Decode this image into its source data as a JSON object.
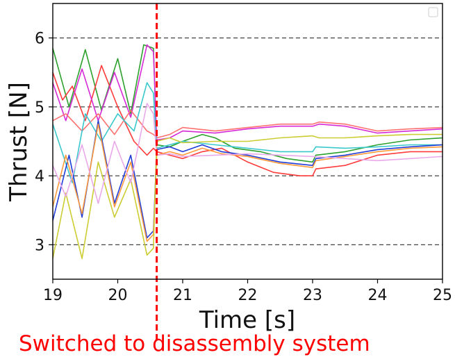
{
  "chart_data": {
    "type": "line",
    "xlabel": "Time [s]",
    "ylabel": "Thrust [N]",
    "xlim": [
      19,
      25
    ],
    "ylim": [
      2.5,
      6.5
    ],
    "x_ticks": [
      19,
      20,
      21,
      22,
      23,
      24,
      25
    ],
    "y_ticks": [
      3,
      4,
      5,
      6
    ],
    "x_tick_labels": [
      "19",
      "20",
      "21",
      "22",
      "23",
      "24",
      "25"
    ],
    "y_tick_labels": [
      "3",
      "4",
      "5",
      "6"
    ],
    "grid": {
      "horizontal_dashed": true,
      "lines_at": [
        3,
        4,
        5,
        6
      ]
    },
    "legend": {
      "placement": "top-right",
      "entries": []
    },
    "annotation": {
      "x": 20.6,
      "color": "#ff0000",
      "style": "dashed",
      "text": "Switched to disassembly system"
    },
    "series": [
      {
        "color": "#2ca02c",
        "points": [
          [
            19,
            5.85
          ],
          [
            19.25,
            5.0
          ],
          [
            19.5,
            5.83
          ],
          [
            19.75,
            4.95
          ],
          [
            20,
            5.7
          ],
          [
            20.2,
            4.9
          ],
          [
            20.4,
            5.9
          ],
          [
            20.55,
            5.85
          ],
          [
            20.6,
            4.45
          ],
          [
            20.8,
            4.42
          ],
          [
            21.0,
            4.5
          ],
          [
            21.3,
            4.6
          ],
          [
            21.5,
            4.55
          ],
          [
            21.8,
            4.4
          ],
          [
            22.2,
            4.35
          ],
          [
            22.6,
            4.25
          ],
          [
            23.0,
            4.2
          ],
          [
            23.05,
            4.3
          ],
          [
            23.5,
            4.35
          ],
          [
            24.0,
            4.45
          ],
          [
            24.5,
            4.52
          ],
          [
            25,
            4.55
          ]
        ]
      },
      {
        "color": "#ff3b3b",
        "points": [
          [
            19,
            5.5
          ],
          [
            19.15,
            5.1
          ],
          [
            19.3,
            5.3
          ],
          [
            19.5,
            4.8
          ],
          [
            19.75,
            5.6
          ],
          [
            20,
            5.0
          ],
          [
            20.25,
            4.5
          ],
          [
            20.45,
            4.3
          ],
          [
            20.55,
            4.4
          ],
          [
            20.6,
            4.35
          ],
          [
            20.8,
            4.3
          ],
          [
            21.0,
            4.25
          ],
          [
            21.3,
            4.35
          ],
          [
            21.6,
            4.4
          ],
          [
            22.0,
            4.2
          ],
          [
            22.4,
            4.05
          ],
          [
            22.8,
            4.0
          ],
          [
            23.0,
            4.0
          ],
          [
            23.05,
            4.1
          ],
          [
            23.5,
            4.15
          ],
          [
            24.0,
            4.3
          ],
          [
            24.5,
            4.35
          ],
          [
            25,
            4.35
          ]
        ]
      },
      {
        "color": "#d62ad6",
        "points": [
          [
            19,
            5.35
          ],
          [
            19.2,
            4.8
          ],
          [
            19.45,
            5.55
          ],
          [
            19.7,
            4.8
          ],
          [
            19.95,
            5.5
          ],
          [
            20.2,
            4.85
          ],
          [
            20.45,
            5.9
          ],
          [
            20.55,
            5.8
          ],
          [
            20.6,
            4.52
          ],
          [
            20.8,
            4.55
          ],
          [
            21.0,
            4.65
          ],
          [
            21.5,
            4.62
          ],
          [
            22.0,
            4.68
          ],
          [
            22.5,
            4.72
          ],
          [
            23.0,
            4.72
          ],
          [
            23.1,
            4.75
          ],
          [
            23.5,
            4.72
          ],
          [
            24.0,
            4.62
          ],
          [
            24.5,
            4.65
          ],
          [
            25,
            4.68
          ]
        ]
      },
      {
        "color": "#ff7070",
        "points": [
          [
            19,
            4.8
          ],
          [
            19.2,
            4.9
          ],
          [
            19.45,
            4.65
          ],
          [
            19.7,
            4.9
          ],
          [
            19.95,
            4.6
          ],
          [
            20.2,
            4.95
          ],
          [
            20.45,
            4.65
          ],
          [
            20.55,
            4.6
          ],
          [
            20.6,
            4.55
          ],
          [
            20.8,
            4.6
          ],
          [
            21.0,
            4.7
          ],
          [
            21.5,
            4.65
          ],
          [
            22.0,
            4.7
          ],
          [
            22.5,
            4.75
          ],
          [
            23.0,
            4.75
          ],
          [
            23.1,
            4.78
          ],
          [
            23.5,
            4.75
          ],
          [
            24.0,
            4.65
          ],
          [
            24.5,
            4.68
          ],
          [
            25,
            4.7
          ]
        ]
      },
      {
        "color": "#3ac8cc",
        "points": [
          [
            19,
            4.75
          ],
          [
            19.3,
            3.9
          ],
          [
            19.5,
            4.9
          ],
          [
            19.75,
            4.5
          ],
          [
            20.0,
            4.9
          ],
          [
            20.25,
            4.65
          ],
          [
            20.45,
            5.35
          ],
          [
            20.55,
            5.2
          ],
          [
            20.6,
            4.4
          ],
          [
            20.8,
            4.45
          ],
          [
            21.0,
            4.5
          ],
          [
            21.5,
            4.45
          ],
          [
            22.0,
            4.4
          ],
          [
            22.5,
            4.35
          ],
          [
            23.0,
            4.35
          ],
          [
            23.05,
            4.42
          ],
          [
            23.5,
            4.4
          ],
          [
            24.0,
            4.42
          ],
          [
            24.5,
            4.45
          ],
          [
            25,
            4.45
          ]
        ]
      },
      {
        "color": "#1f3cd6",
        "points": [
          [
            19,
            3.35
          ],
          [
            19.25,
            4.3
          ],
          [
            19.45,
            3.4
          ],
          [
            19.7,
            4.8
          ],
          [
            19.95,
            3.6
          ],
          [
            20.2,
            4.3
          ],
          [
            20.45,
            3.1
          ],
          [
            20.55,
            3.2
          ],
          [
            20.6,
            4.38
          ],
          [
            20.8,
            4.42
          ],
          [
            21.0,
            4.35
          ],
          [
            21.3,
            4.45
          ],
          [
            21.6,
            4.35
          ],
          [
            22.0,
            4.3
          ],
          [
            22.5,
            4.2
          ],
          [
            23.0,
            4.15
          ],
          [
            23.05,
            4.25
          ],
          [
            23.5,
            4.3
          ],
          [
            24.0,
            4.38
          ],
          [
            24.5,
            4.42
          ],
          [
            25,
            4.45
          ]
        ]
      },
      {
        "color": "#ff9a3c",
        "points": [
          [
            19,
            3.55
          ],
          [
            19.2,
            4.3
          ],
          [
            19.45,
            3.45
          ],
          [
            19.7,
            4.75
          ],
          [
            19.95,
            3.55
          ],
          [
            20.2,
            4.2
          ],
          [
            20.45,
            3.05
          ],
          [
            20.55,
            3.15
          ],
          [
            20.6,
            4.3
          ],
          [
            20.8,
            4.35
          ],
          [
            21.0,
            4.3
          ],
          [
            21.3,
            4.4
          ],
          [
            21.6,
            4.32
          ],
          [
            22.0,
            4.28
          ],
          [
            22.5,
            4.18
          ],
          [
            23.0,
            4.12
          ],
          [
            23.05,
            4.22
          ],
          [
            23.5,
            4.28
          ],
          [
            24.0,
            4.35
          ],
          [
            24.5,
            4.4
          ],
          [
            25,
            4.42
          ]
        ]
      },
      {
        "color": "#cccc33",
        "points": [
          [
            19,
            2.8
          ],
          [
            19.2,
            3.75
          ],
          [
            19.45,
            2.8
          ],
          [
            19.7,
            4.2
          ],
          [
            19.95,
            3.4
          ],
          [
            20.2,
            3.95
          ],
          [
            20.45,
            2.85
          ],
          [
            20.55,
            2.95
          ],
          [
            20.6,
            4.5
          ],
          [
            20.8,
            4.55
          ],
          [
            21.0,
            4.48
          ],
          [
            21.5,
            4.5
          ],
          [
            22.0,
            4.5
          ],
          [
            22.5,
            4.55
          ],
          [
            23.0,
            4.58
          ],
          [
            23.1,
            4.55
          ],
          [
            23.5,
            4.55
          ],
          [
            24.0,
            4.58
          ],
          [
            24.5,
            4.6
          ],
          [
            25,
            4.6
          ]
        ]
      },
      {
        "color": "#e9a8e9",
        "points": [
          [
            19,
            4.15
          ],
          [
            19.2,
            3.7
          ],
          [
            19.45,
            4.45
          ],
          [
            19.7,
            3.6
          ],
          [
            19.95,
            4.5
          ],
          [
            20.2,
            3.9
          ],
          [
            20.45,
            5.05
          ],
          [
            20.55,
            4.9
          ],
          [
            20.6,
            4.3
          ],
          [
            20.8,
            4.32
          ],
          [
            21.0,
            4.28
          ],
          [
            21.5,
            4.3
          ],
          [
            22.0,
            4.32
          ],
          [
            22.5,
            4.3
          ],
          [
            23.0,
            4.28
          ],
          [
            23.5,
            4.25
          ],
          [
            24.0,
            4.22
          ],
          [
            24.5,
            4.25
          ],
          [
            25,
            4.28
          ]
        ]
      }
    ]
  }
}
